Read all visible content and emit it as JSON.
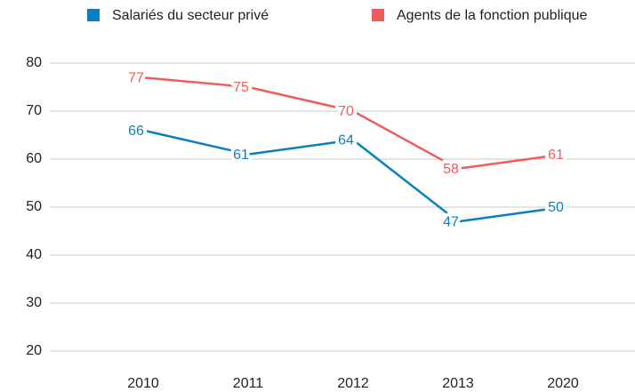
{
  "chart_data": {
    "type": "line",
    "categories": [
      "2010",
      "2011",
      "2012",
      "2013",
      "2020"
    ],
    "series": [
      {
        "name": "Salariés du secteur privé",
        "color": "#0a7ec2",
        "values": [
          66,
          61,
          64,
          47,
          50
        ]
      },
      {
        "name": "Agents de la fonction publique",
        "color": "#f05c5c",
        "values": [
          77,
          75,
          70,
          58,
          61
        ]
      }
    ],
    "ylim": [
      20,
      80
    ],
    "yticks": [
      20,
      30,
      40,
      50,
      60,
      70,
      80
    ],
    "grid": true
  }
}
